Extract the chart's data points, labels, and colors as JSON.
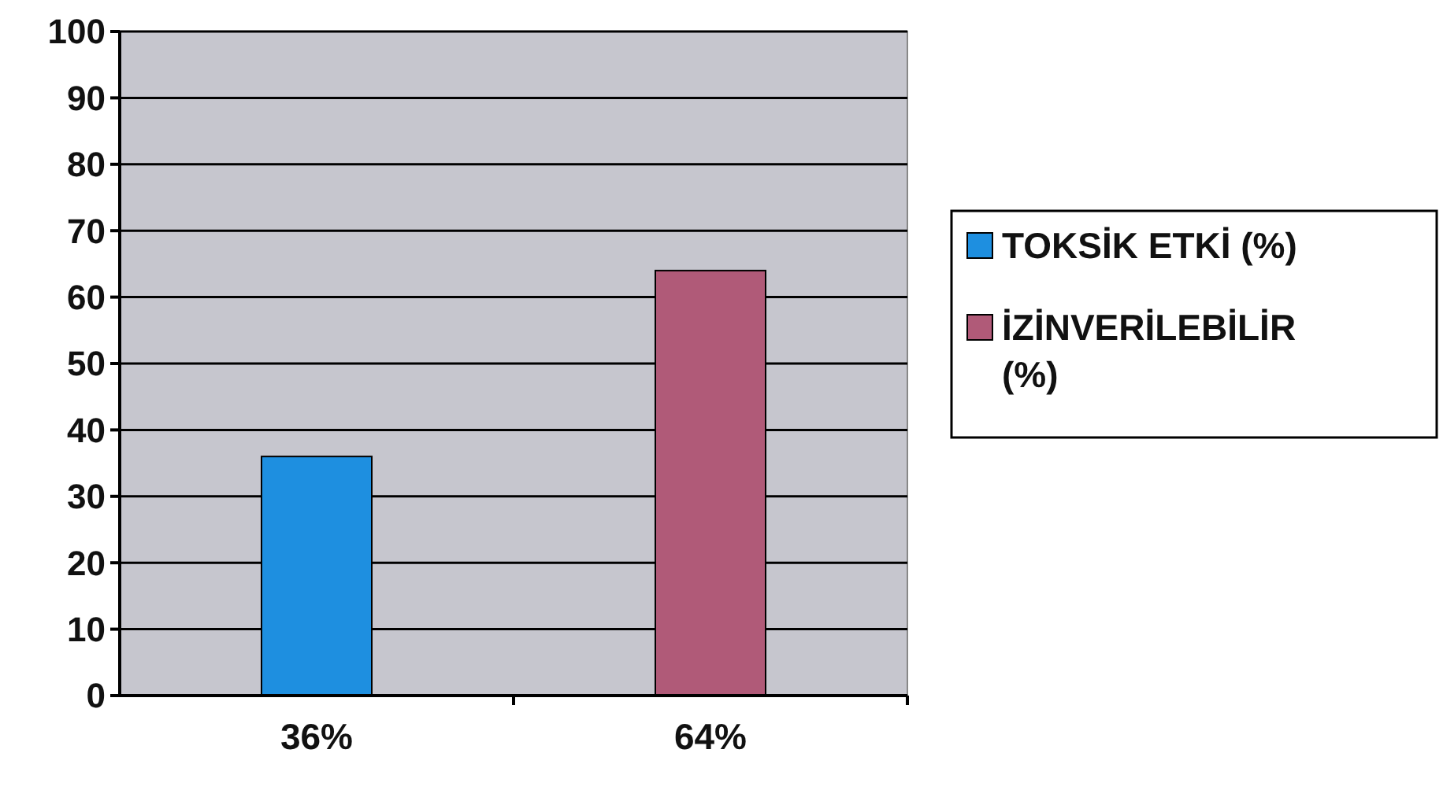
{
  "chart_data": {
    "type": "bar",
    "categories": [
      "36%",
      "64%"
    ],
    "series": [
      {
        "name": "TOKSİK ETKİ (%)",
        "color": "#1e8fe0",
        "values": [
          36,
          null
        ]
      },
      {
        "name": "İZİNVERİLEBİLİR (%)",
        "color": "#b05a78",
        "values": [
          null,
          64
        ]
      }
    ],
    "ylim": [
      0,
      100
    ],
    "yticks": [
      0,
      10,
      20,
      30,
      40,
      50,
      60,
      70,
      80,
      90,
      100
    ],
    "grid": "y",
    "legend": "right"
  }
}
